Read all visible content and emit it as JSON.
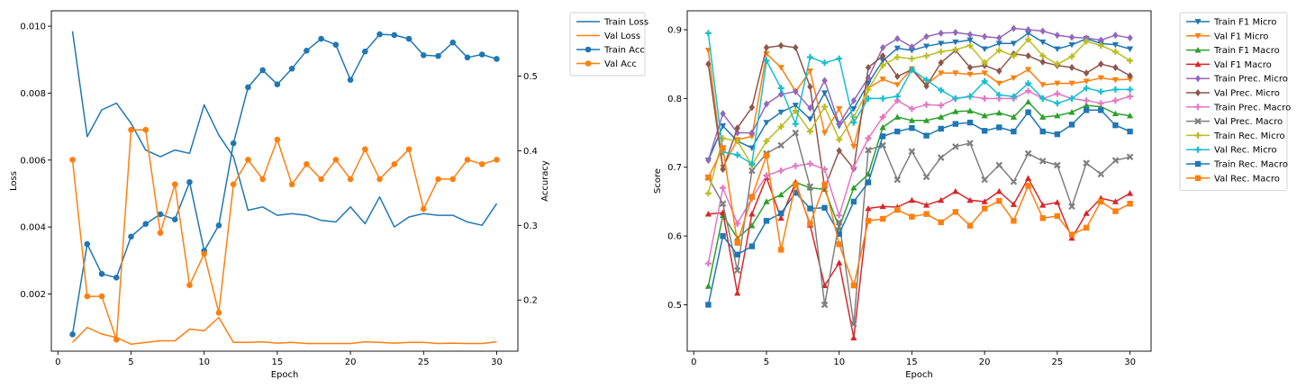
{
  "chart_data": [
    {
      "type": "line",
      "xlabel": "Epoch",
      "ylabel": "Loss",
      "y2label": "Accuracy",
      "xlim": [
        -0.45,
        31.45
      ],
      "ylim": [
        0.00029,
        0.01046
      ],
      "y2lim": [
        0.1315,
        0.5875
      ],
      "xticks": [
        0,
        5,
        10,
        15,
        20,
        25,
        30
      ],
      "yticks": [
        0.002,
        0.004,
        0.006,
        0.008,
        0.01
      ],
      "yticklabels": [
        "0.002",
        "0.004",
        "0.006",
        "0.008",
        "0.010"
      ],
      "y2ticks": [
        0.2,
        0.3,
        0.4,
        0.5
      ],
      "y2ticklabels": [
        "0.2",
        "0.3",
        "0.4",
        "0.5"
      ],
      "legend_position": "outside-top-right",
      "x": [
        1,
        2,
        3,
        4,
        5,
        6,
        7,
        8,
        9,
        10,
        11,
        12,
        13,
        14,
        15,
        16,
        17,
        18,
        19,
        20,
        21,
        22,
        23,
        24,
        25,
        26,
        27,
        28,
        29,
        30
      ],
      "series": [
        {
          "name": "Train Loss",
          "axis": "left",
          "color": "#1f77b4",
          "marker": "none",
          "values": [
            0.00985,
            0.0067,
            0.0075,
            0.0077,
            0.0071,
            0.0063,
            0.0061,
            0.0063,
            0.0062,
            0.00765,
            0.00675,
            0.0061,
            0.0045,
            0.0046,
            0.00435,
            0.0044,
            0.00435,
            0.0042,
            0.00415,
            0.0046,
            0.0041,
            0.0049,
            0.004,
            0.0043,
            0.0044,
            0.00435,
            0.00435,
            0.00415,
            0.00405,
            0.0047
          ]
        },
        {
          "name": "Val Loss",
          "axis": "left",
          "color": "#ff7f0e",
          "marker": "none",
          "values": [
            0.00055,
            0.001,
            0.0008,
            0.0007,
            0.0005,
            0.00055,
            0.0006,
            0.0006,
            0.00095,
            0.0009,
            0.0013,
            0.00055,
            0.00055,
            0.00057,
            0.00053,
            0.00055,
            0.00052,
            0.00052,
            0.00052,
            0.00052,
            0.00057,
            0.00055,
            0.00053,
            0.00055,
            0.00055,
            0.00052,
            0.00053,
            0.00052,
            0.00052,
            0.00057
          ]
        },
        {
          "name": "Train Acc",
          "axis": "right",
          "color": "#1f77b4",
          "marker": "circle",
          "values": [
            0.154,
            0.275,
            0.235,
            0.23,
            0.285,
            0.302,
            0.315,
            0.308,
            0.358,
            0.266,
            0.3,
            0.41,
            0.485,
            0.508,
            0.489,
            0.51,
            0.534,
            0.55,
            0.542,
            0.495,
            0.533,
            0.556,
            0.555,
            0.55,
            0.528,
            0.527,
            0.545,
            0.525,
            0.529,
            0.523
          ]
        },
        {
          "name": "Val Acc",
          "axis": "right",
          "color": "#ff7f0e",
          "marker": "circle",
          "values": [
            0.388,
            0.205,
            0.205,
            0.147,
            0.428,
            0.428,
            0.29,
            0.355,
            0.22,
            0.262,
            0.183,
            0.355,
            0.388,
            0.362,
            0.415,
            0.355,
            0.382,
            0.362,
            0.388,
            0.362,
            0.402,
            0.362,
            0.382,
            0.402,
            0.322,
            0.362,
            0.362,
            0.388,
            0.382,
            0.388
          ]
        }
      ]
    },
    {
      "type": "line",
      "xlabel": "Epoch",
      "ylabel": "Score",
      "xlim": [
        -0.45,
        31.45
      ],
      "ylim": [
        0.4325,
        0.9275
      ],
      "xticks": [
        0,
        5,
        10,
        15,
        20,
        25,
        30
      ],
      "yticks": [
        0.5,
        0.6,
        0.7,
        0.8,
        0.9
      ],
      "yticklabels": [
        "0.5",
        "0.6",
        "0.7",
        "0.8",
        "0.9"
      ],
      "legend_position": "outside-top-right",
      "x": [
        1,
        2,
        3,
        4,
        5,
        6,
        7,
        8,
        9,
        10,
        11,
        12,
        13,
        14,
        15,
        16,
        17,
        18,
        19,
        20,
        21,
        22,
        23,
        24,
        25,
        26,
        27,
        28,
        29,
        30
      ],
      "series": [
        {
          "name": "Train F1 Micro",
          "color": "#1f77b4",
          "marker": "tri_down",
          "values": [
            0.71,
            0.76,
            0.738,
            0.728,
            0.765,
            0.78,
            0.79,
            0.77,
            0.808,
            0.76,
            0.785,
            0.822,
            0.855,
            0.873,
            0.87,
            0.876,
            0.88,
            0.882,
            0.885,
            0.872,
            0.88,
            0.88,
            0.895,
            0.882,
            0.872,
            0.878,
            0.887,
            0.88,
            0.878,
            0.872
          ]
        },
        {
          "name": "Val F1 Micro",
          "color": "#ff7f0e",
          "marker": "tri_down",
          "values": [
            0.87,
            0.7,
            0.74,
            0.745,
            0.865,
            0.845,
            0.81,
            0.84,
            0.75,
            0.785,
            0.73,
            0.815,
            0.828,
            0.82,
            0.843,
            0.82,
            0.837,
            0.837,
            0.835,
            0.837,
            0.822,
            0.83,
            0.842,
            0.82,
            0.822,
            0.822,
            0.825,
            0.83,
            0.827,
            0.828
          ]
        },
        {
          "name": "Train F1 Macro",
          "color": "#2ca02c",
          "marker": "tri_up",
          "values": [
            0.527,
            0.63,
            0.597,
            0.615,
            0.65,
            0.66,
            0.678,
            0.67,
            0.668,
            0.612,
            0.67,
            0.69,
            0.758,
            0.773,
            0.768,
            0.768,
            0.773,
            0.781,
            0.782,
            0.775,
            0.779,
            0.773,
            0.795,
            0.773,
            0.775,
            0.78,
            0.79,
            0.788,
            0.778,
            0.775
          ]
        },
        {
          "name": "Val F1 Macro",
          "color": "#d62728",
          "marker": "tri_up",
          "values": [
            0.632,
            0.634,
            0.517,
            0.632,
            0.685,
            0.626,
            0.678,
            0.616,
            0.528,
            0.561,
            0.452,
            0.64,
            0.643,
            0.642,
            0.652,
            0.645,
            0.652,
            0.665,
            0.652,
            0.65,
            0.665,
            0.646,
            0.684,
            0.645,
            0.649,
            0.597,
            0.633,
            0.655,
            0.65,
            0.662
          ]
        },
        {
          "name": "Train Prec. Micro",
          "color": "#9467bd",
          "marker": "diamond",
          "values": [
            0.71,
            0.778,
            0.75,
            0.75,
            0.792,
            0.806,
            0.81,
            0.786,
            0.826,
            0.763,
            0.797,
            0.83,
            0.874,
            0.887,
            0.875,
            0.89,
            0.895,
            0.896,
            0.893,
            0.89,
            0.888,
            0.902,
            0.9,
            0.898,
            0.892,
            0.889,
            0.888,
            0.885,
            0.892,
            0.888
          ]
        },
        {
          "name": "Val Prec. Micro",
          "color": "#8c564b",
          "marker": "diamond",
          "values": [
            0.85,
            0.697,
            0.757,
            0.787,
            0.874,
            0.877,
            0.874,
            0.817,
            0.67,
            0.724,
            0.698,
            0.845,
            0.862,
            0.832,
            0.842,
            0.818,
            0.852,
            0.87,
            0.845,
            0.848,
            0.84,
            0.865,
            0.862,
            0.853,
            0.848,
            0.845,
            0.837,
            0.85,
            0.845,
            0.833
          ]
        },
        {
          "name": "Train Prec. Macro",
          "color": "#e377c2",
          "marker": "plus",
          "values": [
            0.56,
            0.67,
            0.618,
            0.655,
            0.688,
            0.695,
            0.702,
            0.705,
            0.697,
            0.63,
            0.7,
            0.742,
            0.773,
            0.797,
            0.785,
            0.791,
            0.79,
            0.8,
            0.803,
            0.8,
            0.8,
            0.8,
            0.811,
            0.8,
            0.807,
            0.8,
            0.797,
            0.793,
            0.797,
            0.803
          ]
        },
        {
          "name": "Val Prec. Macro",
          "color": "#7f7f7f",
          "marker": "cross",
          "values": [
            0.685,
            0.647,
            0.55,
            0.695,
            0.72,
            0.732,
            0.75,
            0.672,
            0.5,
            0.62,
            0.472,
            0.725,
            0.732,
            0.682,
            0.723,
            0.686,
            0.714,
            0.73,
            0.735,
            0.682,
            0.703,
            0.679,
            0.72,
            0.709,
            0.703,
            0.643,
            0.706,
            0.69,
            0.71,
            0.715
          ]
        },
        {
          "name": "Train Rec. Micro",
          "color": "#bcbd22",
          "marker": "plus",
          "values": [
            0.662,
            0.742,
            0.738,
            0.703,
            0.738,
            0.759,
            0.782,
            0.752,
            0.788,
            0.74,
            0.773,
            0.813,
            0.848,
            0.86,
            0.858,
            0.862,
            0.868,
            0.871,
            0.877,
            0.852,
            0.87,
            0.862,
            0.886,
            0.862,
            0.85,
            0.861,
            0.883,
            0.877,
            0.868,
            0.855
          ]
        },
        {
          "name": "Val Rec. Micro",
          "color": "#17becf",
          "marker": "plus",
          "values": [
            0.895,
            0.722,
            0.718,
            0.705,
            0.855,
            0.815,
            0.763,
            0.86,
            0.852,
            0.858,
            0.765,
            0.8,
            0.8,
            0.803,
            0.842,
            0.827,
            0.812,
            0.8,
            0.803,
            0.825,
            0.805,
            0.803,
            0.822,
            0.8,
            0.793,
            0.8,
            0.815,
            0.81,
            0.813,
            0.813
          ]
        },
        {
          "name": "Train Rec. Macro",
          "color": "#1f77b4",
          "marker": "square",
          "values": [
            0.5,
            0.6,
            0.573,
            0.585,
            0.622,
            0.633,
            0.663,
            0.64,
            0.641,
            0.603,
            0.65,
            0.678,
            0.745,
            0.752,
            0.757,
            0.746,
            0.756,
            0.763,
            0.765,
            0.753,
            0.758,
            0.752,
            0.78,
            0.752,
            0.748,
            0.762,
            0.783,
            0.783,
            0.761,
            0.752
          ]
        },
        {
          "name": "Val Rec. Macro",
          "color": "#ff7f0e",
          "marker": "square",
          "values": [
            0.685,
            0.728,
            0.59,
            0.657,
            0.717,
            0.58,
            0.675,
            0.618,
            0.675,
            0.588,
            0.528,
            0.622,
            0.625,
            0.638,
            0.628,
            0.632,
            0.62,
            0.635,
            0.615,
            0.64,
            0.651,
            0.622,
            0.673,
            0.626,
            0.629,
            0.602,
            0.612,
            0.65,
            0.636,
            0.647
          ]
        }
      ]
    }
  ]
}
